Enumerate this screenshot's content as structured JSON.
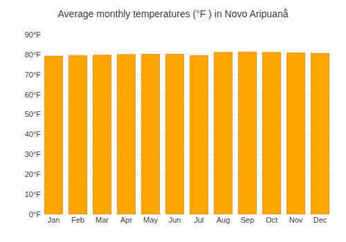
{
  "chart_data": {
    "type": "bar",
    "title": "Average monthly temperatures (°F ) in Novo Aripuanã́",
    "categories": [
      "Jan",
      "Feb",
      "Mar",
      "Apr",
      "May",
      "Jun",
      "Jul",
      "Aug",
      "Sep",
      "Oct",
      "Nov",
      "Dec"
    ],
    "values": [
      79.3,
      79.5,
      79.7,
      80.0,
      80.1,
      80.1,
      79.5,
      81.1,
      81.3,
      81.1,
      80.8,
      80.6
    ],
    "color": "#FFA500",
    "ylim": [
      0,
      90
    ],
    "yticks": [
      {
        "value": 0,
        "label": "0°F"
      },
      {
        "value": 10,
        "label": "10°F"
      },
      {
        "value": 20,
        "label": "20°F"
      },
      {
        "value": 30,
        "label": "30°F"
      },
      {
        "value": 40,
        "label": "40°F"
      },
      {
        "value": 50,
        "label": "50°F"
      },
      {
        "value": 60,
        "label": "60°F"
      },
      {
        "value": 70,
        "label": "70°F"
      },
      {
        "value": 80,
        "label": "80°F"
      },
      {
        "value": 90,
        "label": "90°F"
      }
    ],
    "grid": true
  }
}
